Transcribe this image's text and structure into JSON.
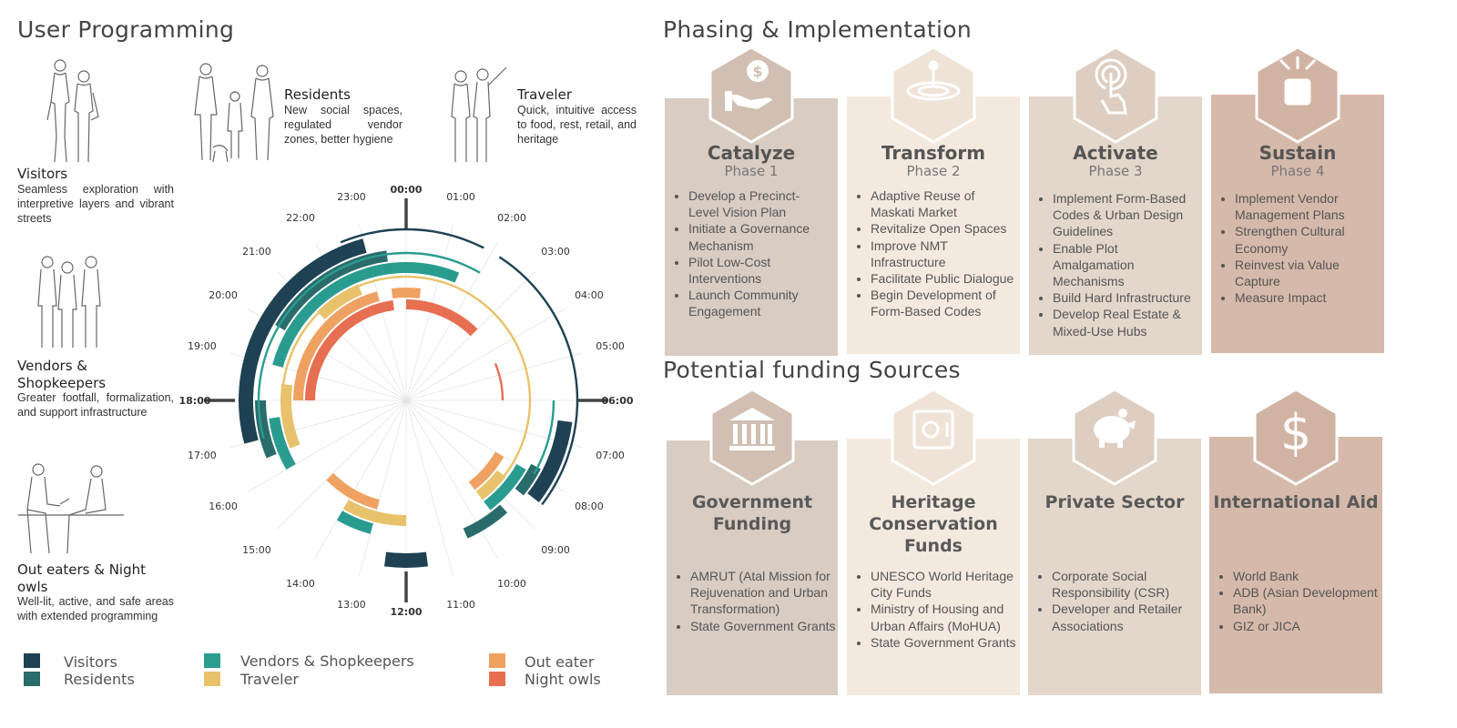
{
  "user_programming": {
    "title": "User Programming",
    "users": [
      {
        "name": "Visitors",
        "desc": "Seamless exploration with interpretive layers and vibrant streets",
        "icon": "visitors-figure-icon"
      },
      {
        "name": "Residents",
        "desc": "New social spaces, regulated vendor zones, better hygiene",
        "icon": "residents-family-figure-icon"
      },
      {
        "name": "Traveler",
        "desc": "Quick, intuitive access to food, rest, retail, and heritage",
        "icon": "traveler-figure-icon"
      },
      {
        "name": "Vendors & Shopkeepers",
        "desc": "Greater footfall, formalization, and support infrastructure",
        "icon": "vendors-figure-icon"
      },
      {
        "name": "Out eaters & Night owls",
        "desc": "Well-lit, active, and safe areas with extended programming",
        "icon": "night-owls-figure-icon"
      }
    ],
    "hours": [
      "00:00",
      "01:00",
      "02:00",
      "03:00",
      "04:00",
      "05:00",
      "06:00",
      "07:00",
      "08:00",
      "09:00",
      "10:00",
      "11:00",
      "12:00",
      "13:00",
      "14:00",
      "15:00",
      "16:00",
      "17:00",
      "18:00",
      "19:00",
      "20:00",
      "21:00",
      "22:00",
      "23:00"
    ],
    "legend": [
      {
        "label": "Visitors",
        "color": "#1e4153"
      },
      {
        "label": "Residents",
        "color": "#2a6b6c"
      },
      {
        "label": "Vendors & Shopkeepers",
        "color": "#2a9c8f"
      },
      {
        "label": "Traveler",
        "color": "#e8c26a"
      },
      {
        "label": "Out eater",
        "color": "#efa161"
      },
      {
        "label": "Night owls",
        "color": "#e76f51"
      }
    ],
    "activity_rings": [
      {
        "user": "Visitors",
        "color": "#1e4153",
        "active_hours": [
          [
            6.5,
            8.5
          ],
          [
            11.5,
            12.5
          ],
          [
            17.0,
            23.0
          ]
        ]
      },
      {
        "user": "Residents",
        "color": "#2a6b6c",
        "active_hours": [
          [
            7.8,
            8.6
          ],
          [
            9.2,
            10.4
          ],
          [
            16.5,
            18.0
          ],
          [
            20.0,
            23.5
          ]
        ]
      },
      {
        "user": "Vendors & Shopkeepers",
        "color": "#2a9c8f",
        "active_hours": [
          [
            8.0,
            9.5
          ],
          [
            13.0,
            14.0
          ],
          [
            16.0,
            17.5
          ],
          [
            19.0,
            24.0
          ],
          [
            0.0,
            1.5
          ]
        ]
      },
      {
        "user": "Traveler",
        "color": "#e8c26a",
        "active_hours": [
          [
            8.5,
            9.5
          ],
          [
            12.0,
            14.0
          ],
          [
            16.5,
            18.5
          ],
          [
            21.0,
            22.5
          ]
        ]
      },
      {
        "user": "Out eater",
        "color": "#efa161",
        "active_hours": [
          [
            8.0,
            9.5
          ],
          [
            13.0,
            15.0
          ],
          [
            18.0,
            23.0
          ],
          [
            23.5,
            24.0
          ],
          [
            0.0,
            0.5
          ]
        ]
      },
      {
        "user": "Night owls",
        "color": "#e76f51",
        "active_hours": [
          [
            18.0,
            23.5
          ],
          [
            0.0,
            3.0
          ]
        ]
      }
    ],
    "thin_rings": [
      {
        "color": "#1e4153",
        "active_hours": [
          [
            0.0,
            1.8
          ],
          [
            2.2,
            8.5
          ],
          [
            22.5,
            24.0
          ]
        ]
      },
      {
        "color": "#2a9c8f",
        "active_hours": [
          [
            0.0,
            2.0
          ],
          [
            6.0,
            8.0
          ],
          [
            17.0,
            24.0
          ]
        ]
      },
      {
        "color": "#e8c26a",
        "active_hours": [
          [
            0.0,
            8.5
          ],
          [
            18.0,
            24.0
          ]
        ]
      },
      {
        "color": "#e76f51",
        "active_hours": [
          [
            4.5,
            6.0
          ]
        ]
      }
    ]
  },
  "phasing": {
    "title": "Phasing & Implementation",
    "phases": [
      {
        "title": "Catalyze",
        "phase": "Phase 1",
        "bg": "#d8ccc3",
        "hex": "#d0bfb2",
        "icon": "hand-coin-icon",
        "items": [
          "Develop a Precinct-Level Vision Plan",
          "Initiate a Governance Mechanism",
          "Pilot Low-Cost Interventions",
          "Launch Community Engagement"
        ]
      },
      {
        "title": "Transform",
        "phase": "Phase 2",
        "bg": "#f4e9df",
        "hex": "#efe3d8",
        "icon": "water-drop-ripple-icon",
        "items": [
          "Adaptive Reuse of Maskati Market",
          "Revitalize Open Spaces",
          "Improve NMT Infrastructure",
          "Facilitate Public Dialogue",
          "Begin Development of Form-Based Codes"
        ]
      },
      {
        "title": "Activate",
        "phase": "Phase 3",
        "bg": "#e3d6cb",
        "hex": "#ddcec1",
        "icon": "touch-tap-icon",
        "items": [
          "Implement Form-Based Codes & Urban Design Guidelines",
          "Enable Plot Amalgamation Mechanisms",
          "Build Hard Infrastructure",
          "Develop Real Estate & Mixed-Use Hubs"
        ]
      },
      {
        "title": "Sustain",
        "phase": "Phase 4",
        "bg": "#d5b9aa",
        "hex": "#d1b3a3",
        "icon": "compress-arrows-icon",
        "items": [
          "Implement Vendor Management Plans",
          "Strengthen Cultural Economy",
          "Reinvest via Value Capture",
          "Measure Impact"
        ]
      }
    ]
  },
  "funding": {
    "title": "Potential funding Sources",
    "sources": [
      {
        "title": "Government Funding",
        "bg": "#d8ccc3",
        "icon": "government-building-icon",
        "items": [
          "AMRUT (Atal Mission for Rejuvenation and Urban Transformation)",
          "State Government Grants"
        ]
      },
      {
        "title": "Heritage Conservation Funds",
        "bg": "#f4e9df",
        "icon": "safe-vault-icon",
        "items": [
          "UNESCO World Heritage City Funds",
          "Ministry of Housing and Urban Affairs (MoHUA)",
          "State Government Grants"
        ]
      },
      {
        "title": "Private Sector",
        "bg": "#e3d6cb",
        "icon": "piggy-bank-icon",
        "items": [
          "Corporate Social Responsibility (CSR)",
          "Developer and Retailer Associations"
        ]
      },
      {
        "title": "International Aid",
        "bg": "#d5b9aa",
        "icon": "dollar-sign-icon",
        "items": [
          "World Bank",
          "ADB (Asian Development Bank)",
          "GIZ  or JICA"
        ]
      }
    ]
  }
}
